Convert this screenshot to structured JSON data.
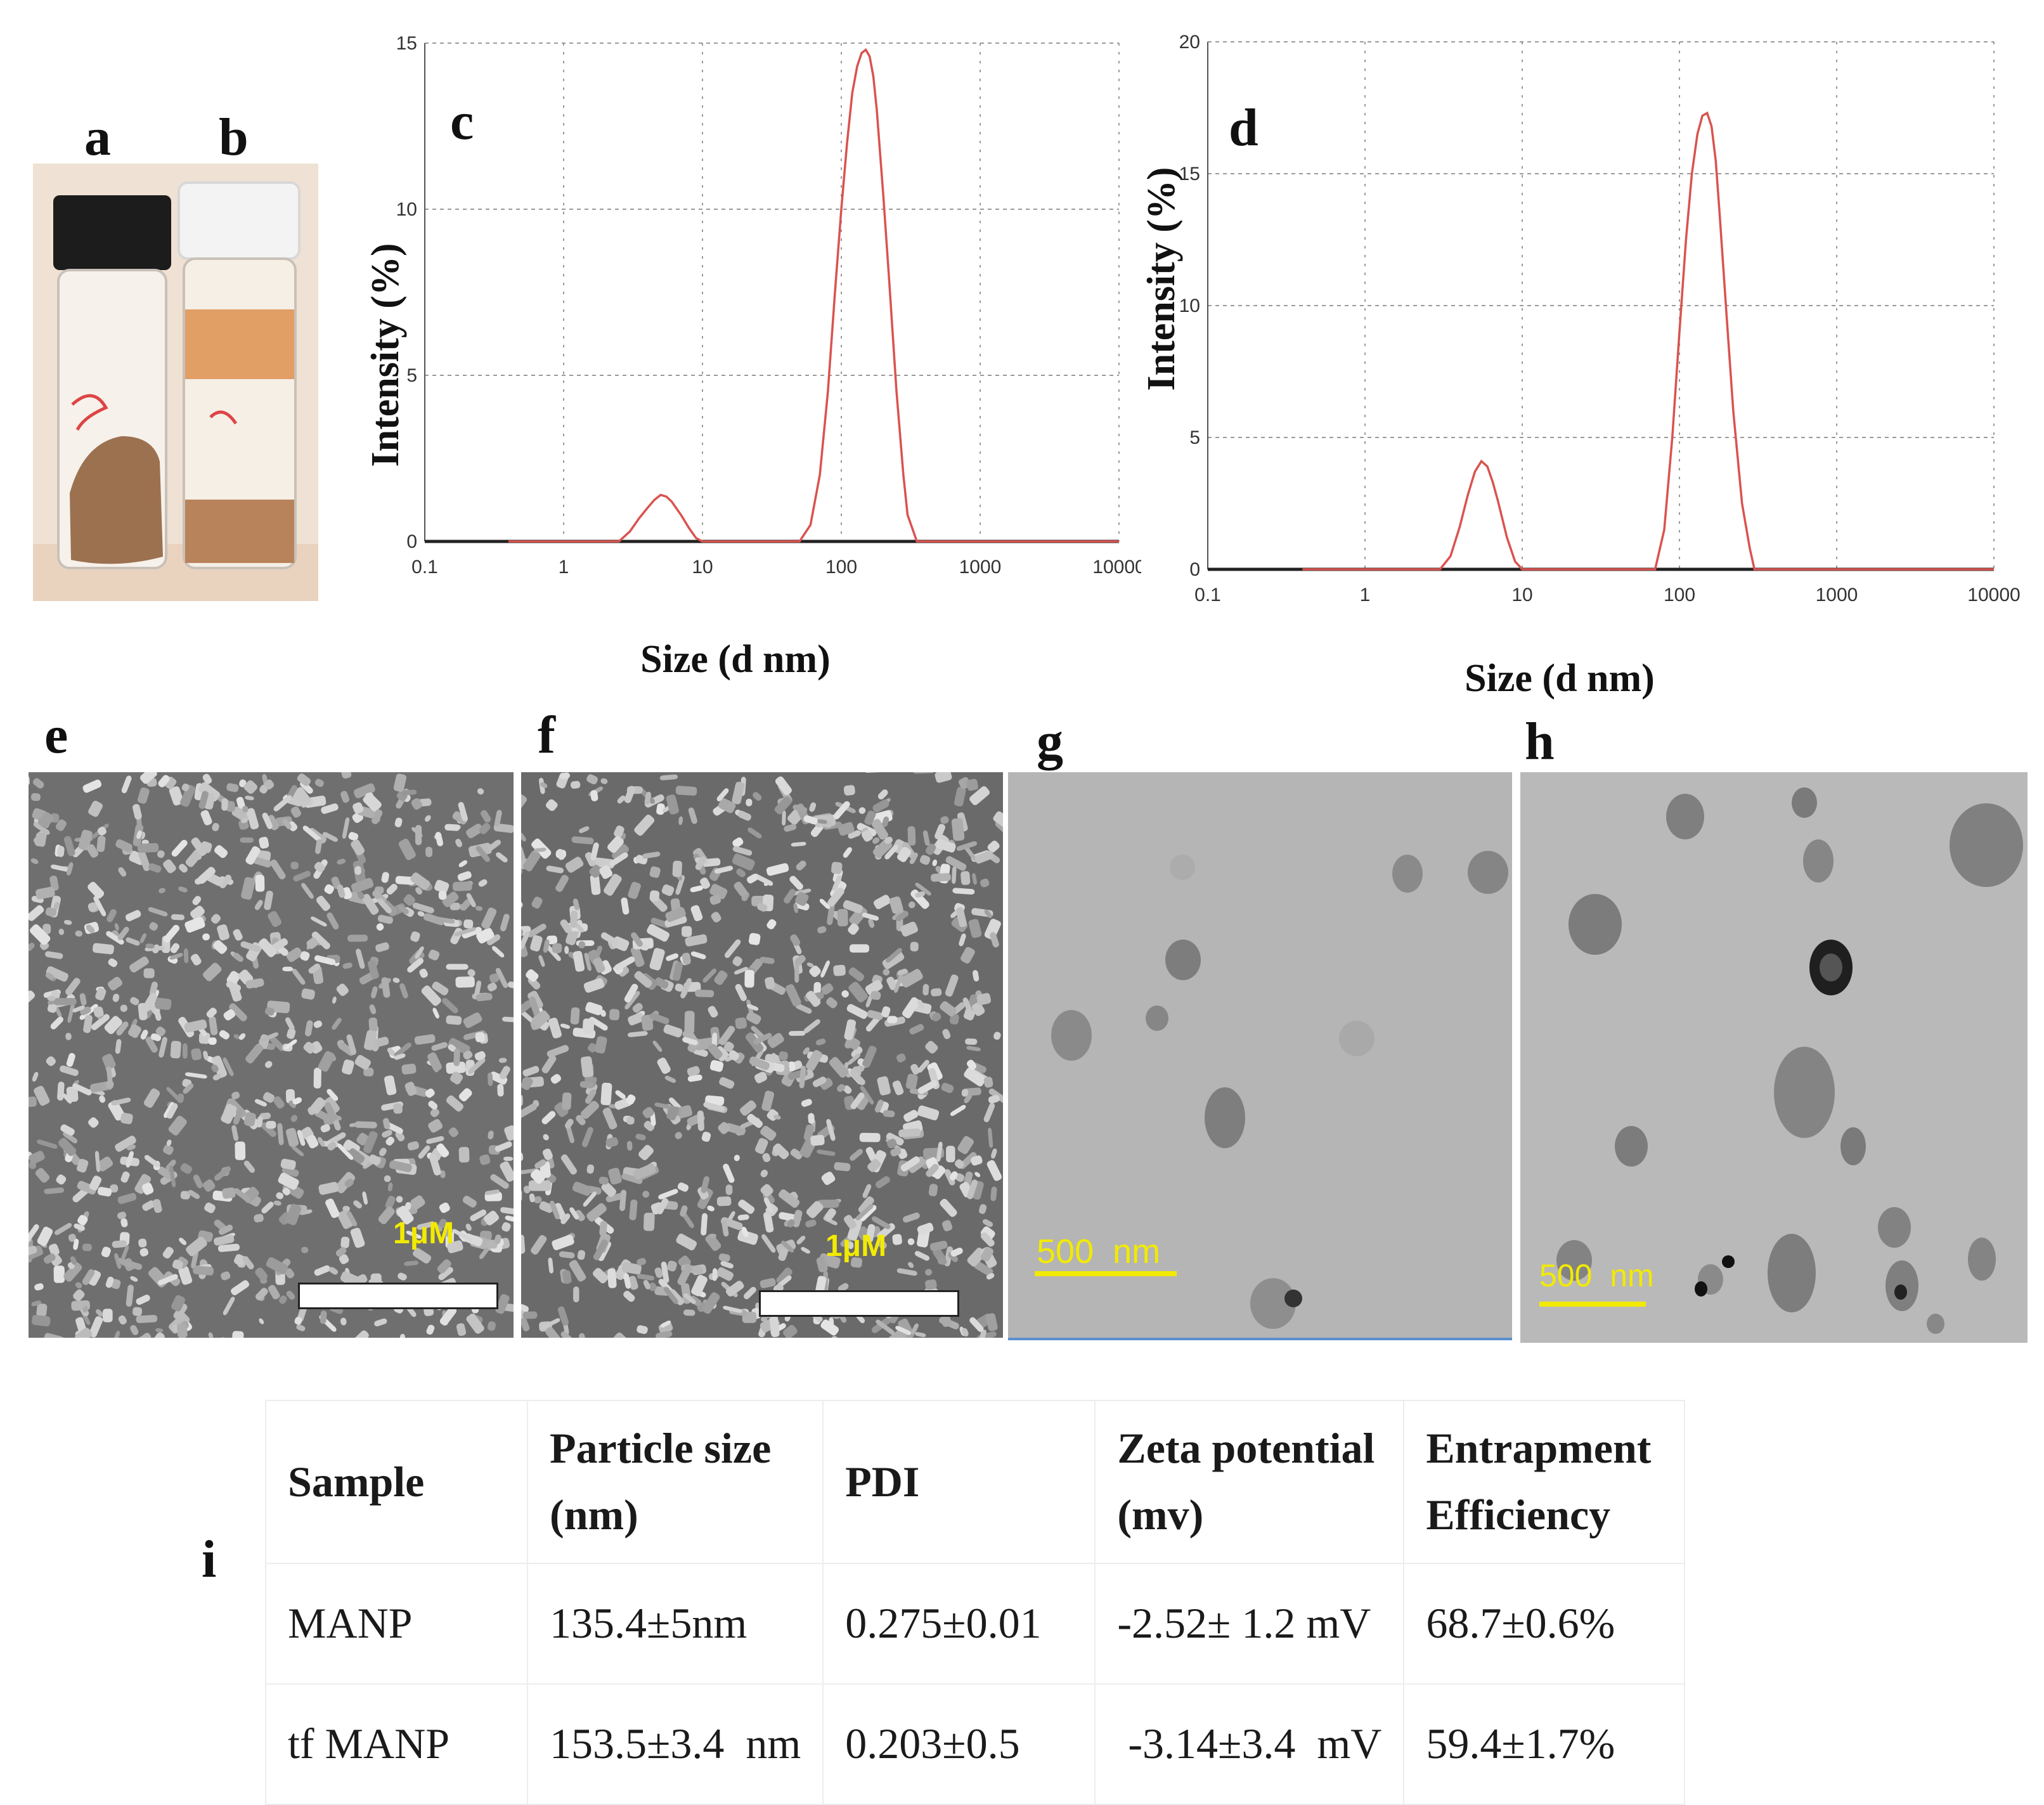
{
  "panels": {
    "a": "a",
    "b": "b",
    "c": "c",
    "d": "d",
    "e": "e",
    "f": "f",
    "g": "g",
    "h": "h",
    "i": "i"
  },
  "sem": {
    "e_scale": "1μM",
    "f_scale": "1μM"
  },
  "tem": {
    "g_scale": "500  nm",
    "h_scale": "500  nm"
  },
  "colors": {
    "curve": "#d9534f",
    "baseline": "#222222",
    "scale_text": "#f2ea00",
    "grid": "#9a9a9a"
  },
  "chart_data": [
    {
      "panel": "c",
      "type": "line",
      "xscale": "log",
      "xlim": [
        0.1,
        10000
      ],
      "ylim": [
        0,
        15
      ],
      "xlabel": "Size (d nm)",
      "ylabel": "Intensity (%)",
      "xticks": [
        "0.1",
        "1",
        "10",
        "100",
        "1000",
        "10000"
      ],
      "yticks": [
        "0",
        "5",
        "10",
        "15"
      ],
      "grid": true,
      "series": [
        {
          "x": [
            0.4,
            2.5,
            3,
            3.5,
            4,
            4.5,
            5,
            5.5,
            6,
            7,
            8,
            9,
            10,
            50,
            60,
            70,
            80,
            90,
            100,
            110,
            120,
            130,
            140,
            150,
            160,
            170,
            180,
            200,
            220,
            250,
            280,
            300,
            350,
            10000
          ],
          "y": [
            0,
            0,
            0.3,
            0.7,
            1.0,
            1.25,
            1.4,
            1.35,
            1.2,
            0.8,
            0.4,
            0.1,
            0,
            0,
            0.5,
            2.0,
            4.5,
            7.5,
            10.0,
            12.0,
            13.5,
            14.3,
            14.7,
            14.8,
            14.6,
            14.0,
            13.0,
            10.5,
            8.0,
            4.5,
            2.0,
            0.8,
            0,
            0
          ]
        }
      ]
    },
    {
      "panel": "d",
      "type": "line",
      "xscale": "log",
      "xlim": [
        0.1,
        10000
      ],
      "ylim": [
        0,
        20
      ],
      "xlabel": "Size (d nm)",
      "ylabel": "Intensity (%)",
      "xticks": [
        "0.1",
        "1",
        "10",
        "100",
        "1000",
        "10000"
      ],
      "yticks": [
        "0",
        "5",
        "10",
        "15",
        "20"
      ],
      "grid": true,
      "series": [
        {
          "x": [
            0.4,
            3,
            3.5,
            4,
            4.5,
            5,
            5.5,
            6,
            6.5,
            7,
            8,
            9,
            10,
            70,
            80,
            90,
            100,
            110,
            120,
            130,
            140,
            150,
            160,
            170,
            180,
            200,
            220,
            250,
            280,
            300,
            10000
          ],
          "y": [
            0,
            0,
            0.5,
            1.6,
            2.8,
            3.7,
            4.1,
            3.9,
            3.3,
            2.6,
            1.2,
            0.3,
            0,
            0,
            1.5,
            5.0,
            9.0,
            12.5,
            15.0,
            16.5,
            17.2,
            17.3,
            16.8,
            15.5,
            13.5,
            9.5,
            6.0,
            2.5,
            0.8,
            0,
            0
          ]
        }
      ]
    },
    {
      "panel": "i",
      "type": "table",
      "columns": [
        "Sample",
        "Particle size\n(nm)",
        "PDI",
        "Zeta potential\n(mv)",
        "Entrapment\nEfficiency"
      ],
      "rows": [
        [
          "MANP",
          "135.4±5nm",
          "0.275±0.01",
          "-2.52± 1.2 mV",
          "68.7±0.6%"
        ],
        [
          "tf MANP",
          "153.5±3.4  nm",
          "0.203±0.5",
          " -3.14±3.4  mV",
          "59.4±1.7%"
        ]
      ]
    }
  ]
}
